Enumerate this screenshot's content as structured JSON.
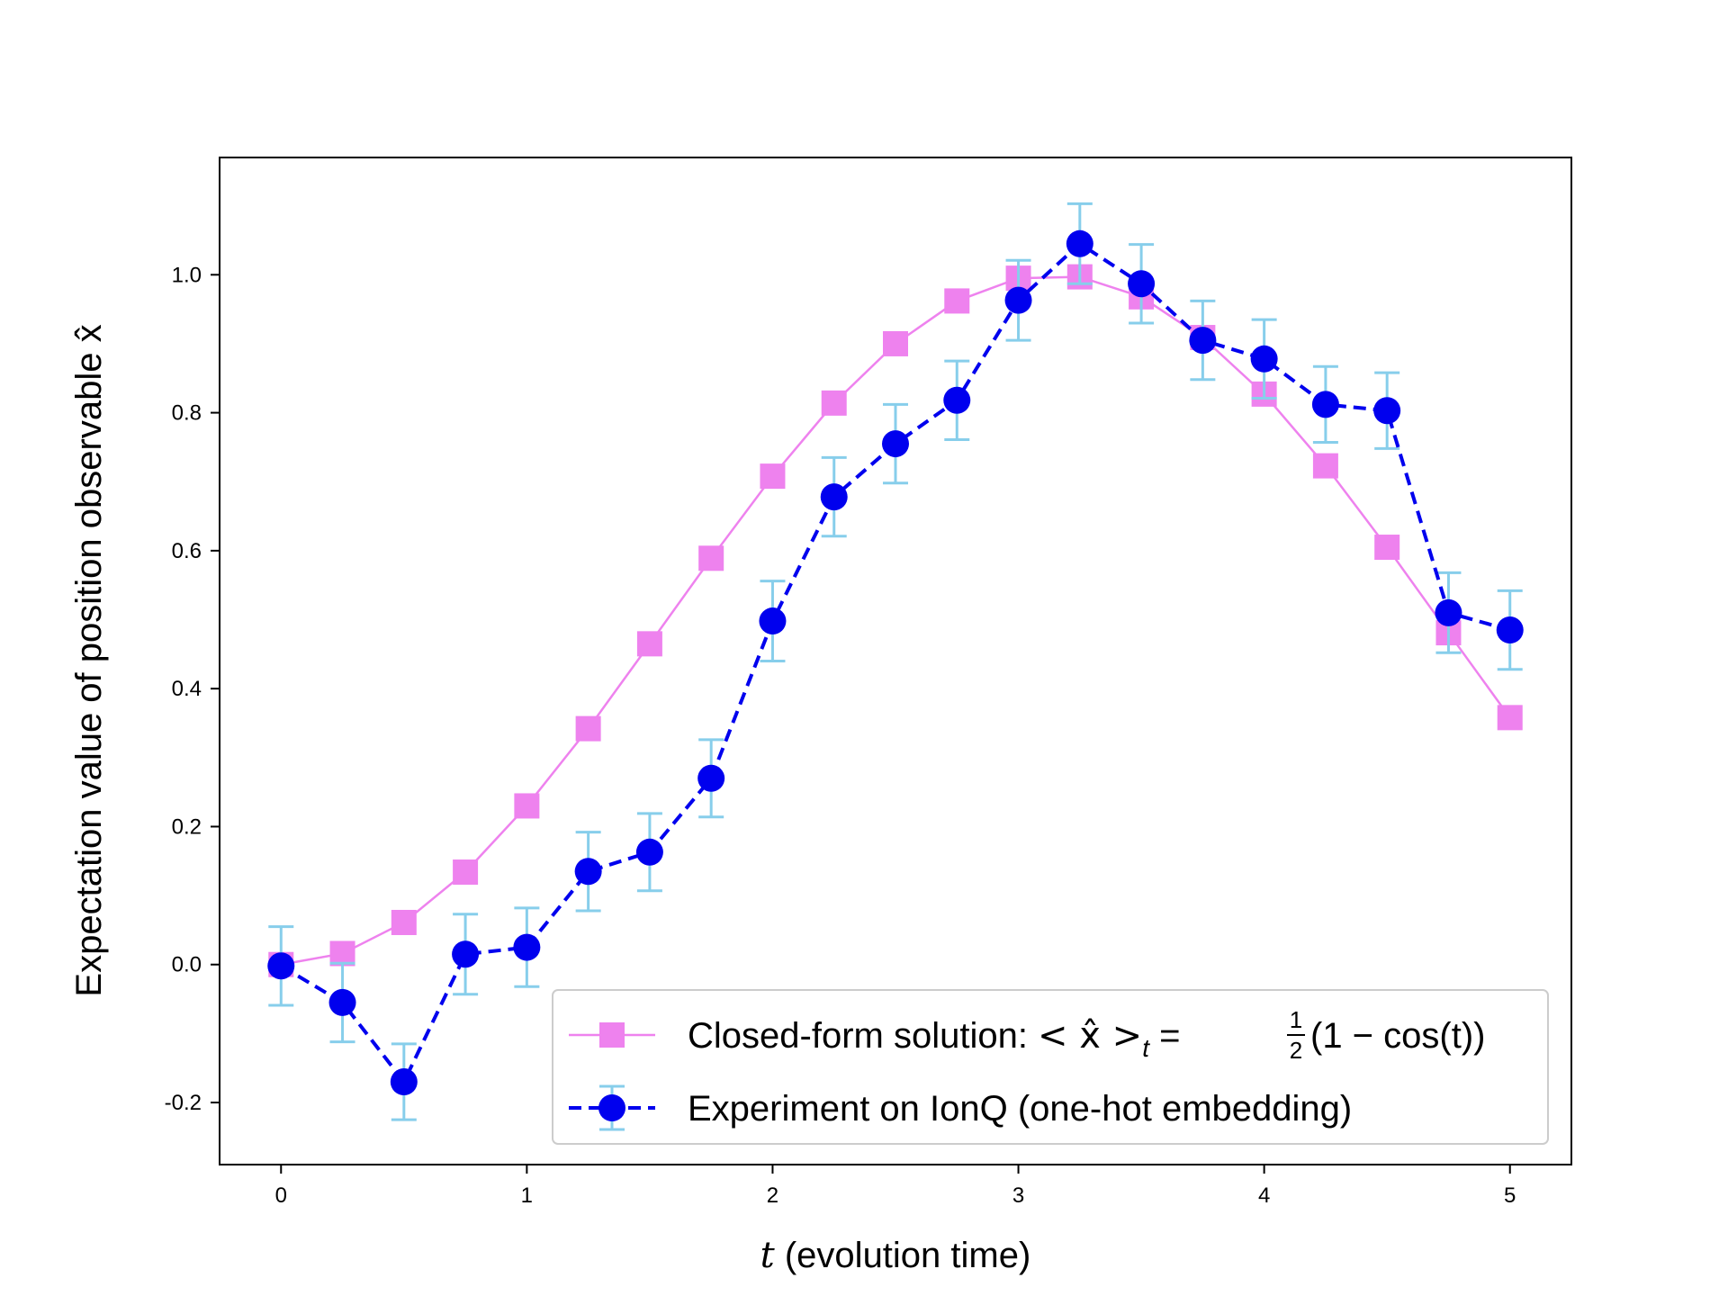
{
  "chart_data": {
    "type": "line",
    "xlabel_var": "t",
    "xlabel_rest": " (evolution time)",
    "ylabel": "Expectation value of position observable x̂",
    "xlim": [
      -0.25,
      5.25
    ],
    "ylim": [
      -0.29,
      1.17
    ],
    "xticks": [
      0,
      1,
      2,
      3,
      4,
      5
    ],
    "yticks": [
      -0.2,
      0.0,
      0.2,
      0.4,
      0.6,
      0.8,
      1.0
    ],
    "grid": false,
    "legend_position": "lower-right",
    "series": [
      {
        "name_prefix": "Closed-form solution: ",
        "name_math": "< x̂ >",
        "name_sub": "t",
        "name_eq": " = ",
        "name_frac_num": "1",
        "name_frac_den": "2",
        "name_suffix": "(1 − cos(t))",
        "marker": "square",
        "linestyle": "solid",
        "color": "#ee82ee",
        "x": [
          0,
          0.25,
          0.5,
          0.75,
          1.0,
          1.25,
          1.5,
          1.75,
          2.0,
          2.25,
          2.5,
          2.75,
          3.0,
          3.25,
          3.5,
          3.75,
          4.0,
          4.25,
          4.5,
          4.75,
          5.0
        ],
        "y": [
          0.0,
          0.016,
          0.061,
          0.134,
          0.23,
          0.342,
          0.465,
          0.589,
          0.708,
          0.814,
          0.9,
          0.962,
          0.995,
          0.997,
          0.968,
          0.909,
          0.827,
          0.723,
          0.605,
          0.481,
          0.358
        ]
      },
      {
        "name": "Experiment on IonQ (one-hot embedding)",
        "marker": "circle",
        "linestyle": "dashed",
        "color": "#0000ee",
        "errorbar_color": "#87ceeb",
        "x": [
          0,
          0.25,
          0.5,
          0.75,
          1.0,
          1.25,
          1.5,
          1.75,
          2.0,
          2.25,
          2.5,
          2.75,
          3.0,
          3.25,
          3.5,
          3.75,
          4.0,
          4.25,
          4.5,
          4.75,
          5.0
        ],
        "y": [
          -0.002,
          -0.055,
          -0.17,
          0.015,
          0.025,
          0.135,
          0.163,
          0.27,
          0.498,
          0.678,
          0.755,
          0.818,
          0.963,
          1.045,
          0.987,
          0.905,
          0.878,
          0.812,
          0.803,
          0.51,
          0.485
        ],
        "err": [
          0.057,
          0.057,
          0.055,
          0.058,
          0.057,
          0.057,
          0.056,
          0.056,
          0.058,
          0.057,
          0.057,
          0.057,
          0.058,
          0.058,
          0.057,
          0.057,
          0.057,
          0.055,
          0.055,
          0.058,
          0.057
        ]
      }
    ]
  }
}
